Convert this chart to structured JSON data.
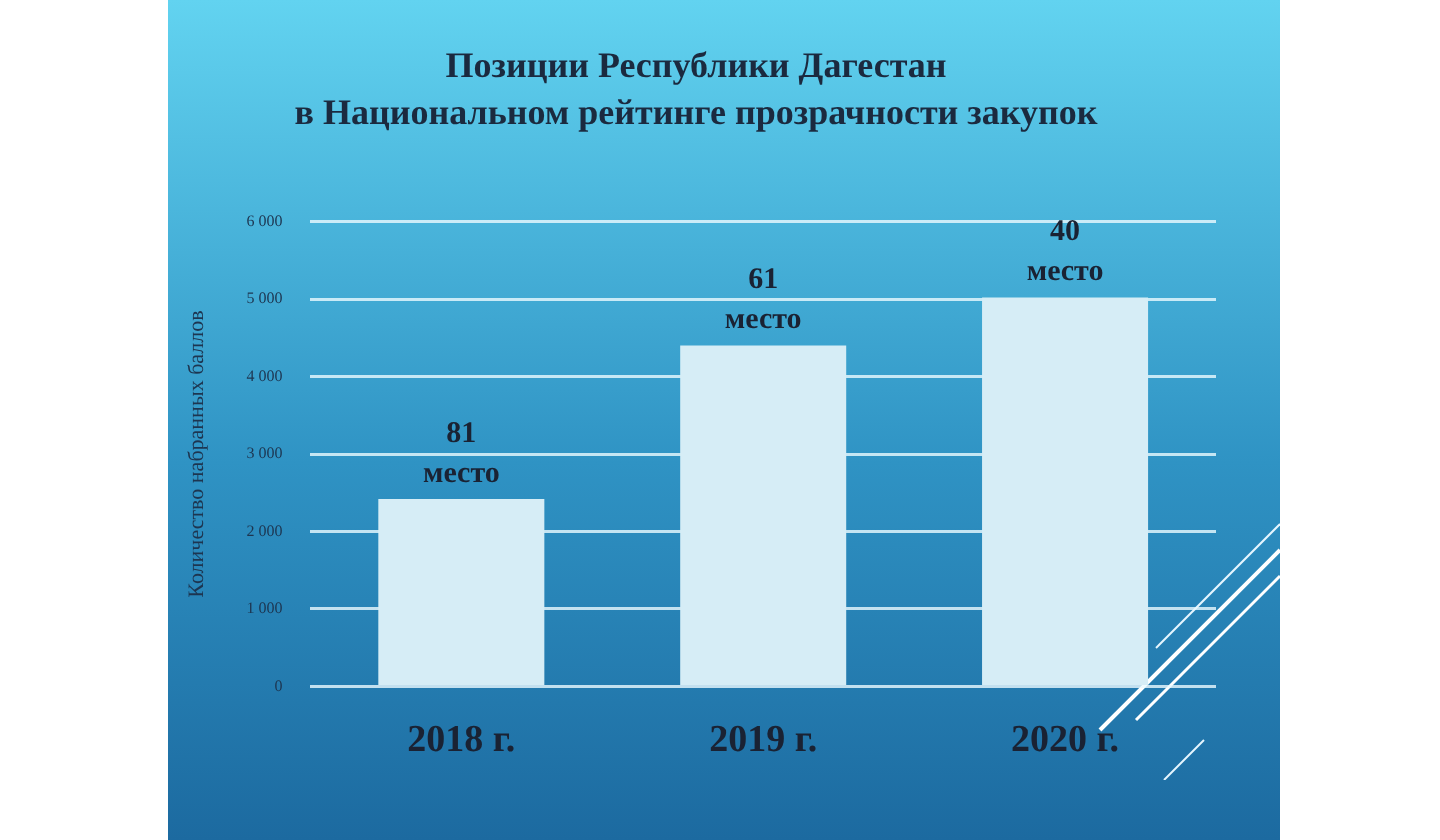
{
  "chart_data": {
    "type": "bar",
    "title": "Позиции Республики Дагестан\nв Национальном рейтинге прозрачности закупок",
    "ylabel": "Количество набранных баллов",
    "categories": [
      "2018 г.",
      "2019 г.",
      "2020 г."
    ],
    "values": [
      2420,
      4400,
      5020
    ],
    "color": "#d6edf6",
    "annotations": [
      {
        "text": "81\nместо",
        "x": "2018 г.",
        "y": 2420
      },
      {
        "text": "61\nместо",
        "x": "2019 г.",
        "y": 4400
      },
      {
        "text": "40\nместо",
        "x": "2020 г.",
        "y": 5020
      }
    ],
    "ylim": [
      0,
      6000
    ],
    "yticks": [
      {
        "value": 0,
        "label": "0"
      },
      {
        "value": 1000,
        "label": "1 000"
      },
      {
        "value": 2000,
        "label": "2 000"
      },
      {
        "value": 3000,
        "label": "3 000"
      },
      {
        "value": 4000,
        "label": "4 000"
      },
      {
        "value": 5000,
        "label": "5 000"
      },
      {
        "value": 6000,
        "label": "6 000"
      }
    ],
    "grid": "y",
    "legend": false
  }
}
